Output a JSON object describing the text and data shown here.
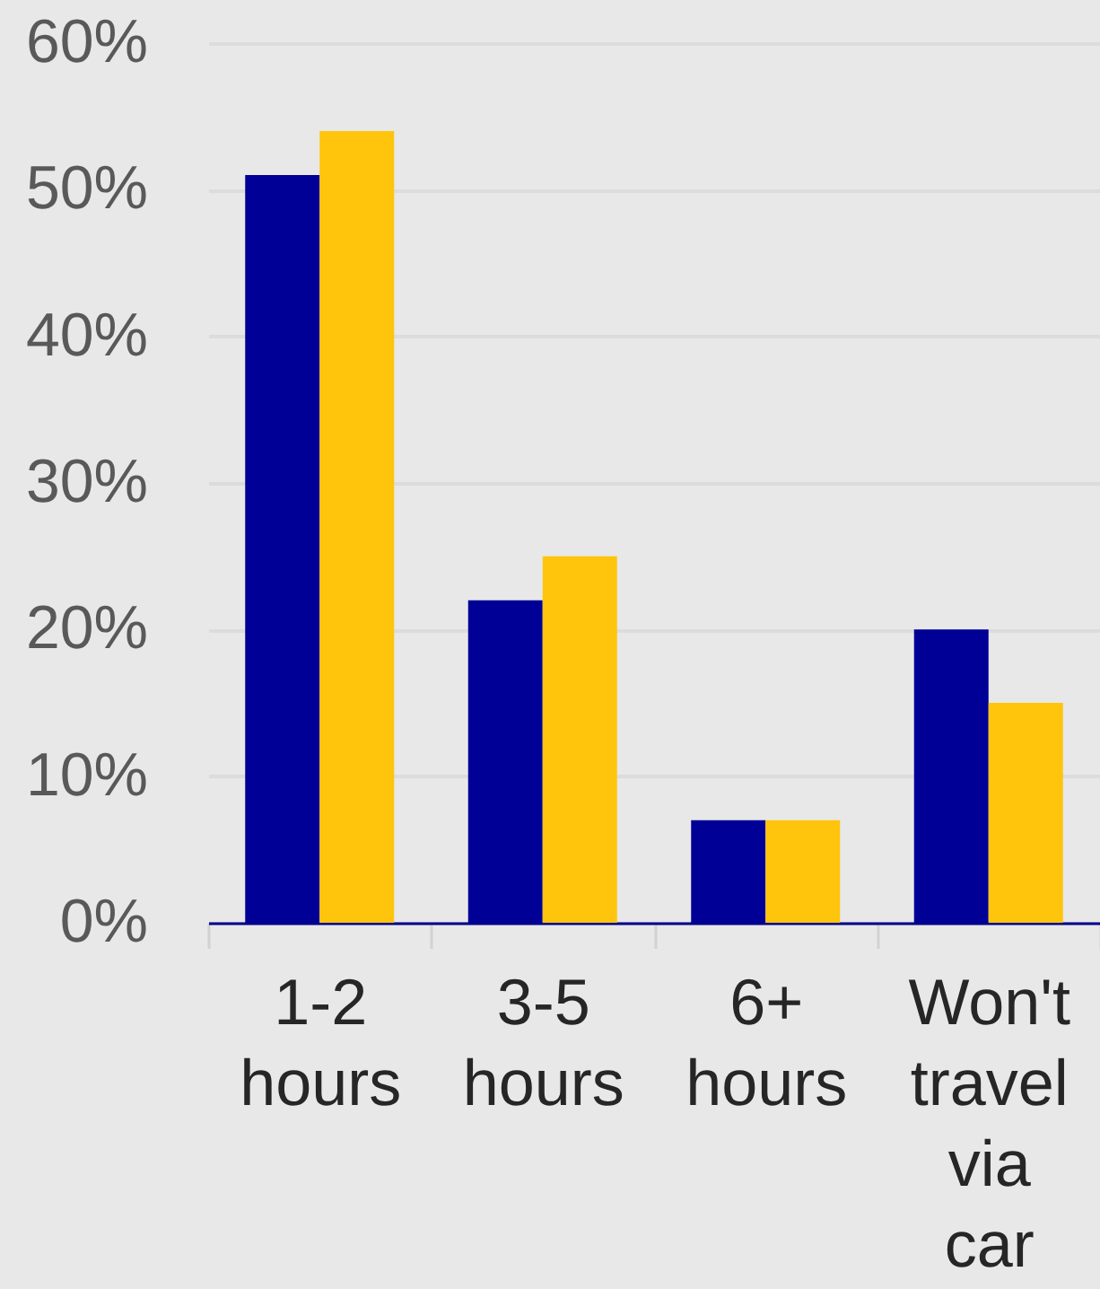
{
  "chart_data": {
    "type": "bar",
    "categories": [
      "1-2 hours",
      "3-5 hours",
      "6+ hours",
      "Won't travel via car"
    ],
    "series": [
      {
        "color": "#000096",
        "values": [
          51,
          22,
          7,
          20
        ]
      },
      {
        "color": "#ffc40c",
        "values": [
          54,
          25,
          7,
          15
        ]
      }
    ],
    "ylim": [
      0,
      60
    ],
    "yticks": [
      {
        "value": 0,
        "label": "0%"
      },
      {
        "value": 10,
        "label": "10%"
      },
      {
        "value": 20,
        "label": "20%"
      },
      {
        "value": 30,
        "label": "30%"
      },
      {
        "value": 40,
        "label": "40%"
      },
      {
        "value": 50,
        "label": "50%"
      },
      {
        "value": 60,
        "label": "60%"
      }
    ],
    "grid": "y",
    "legend": false
  }
}
